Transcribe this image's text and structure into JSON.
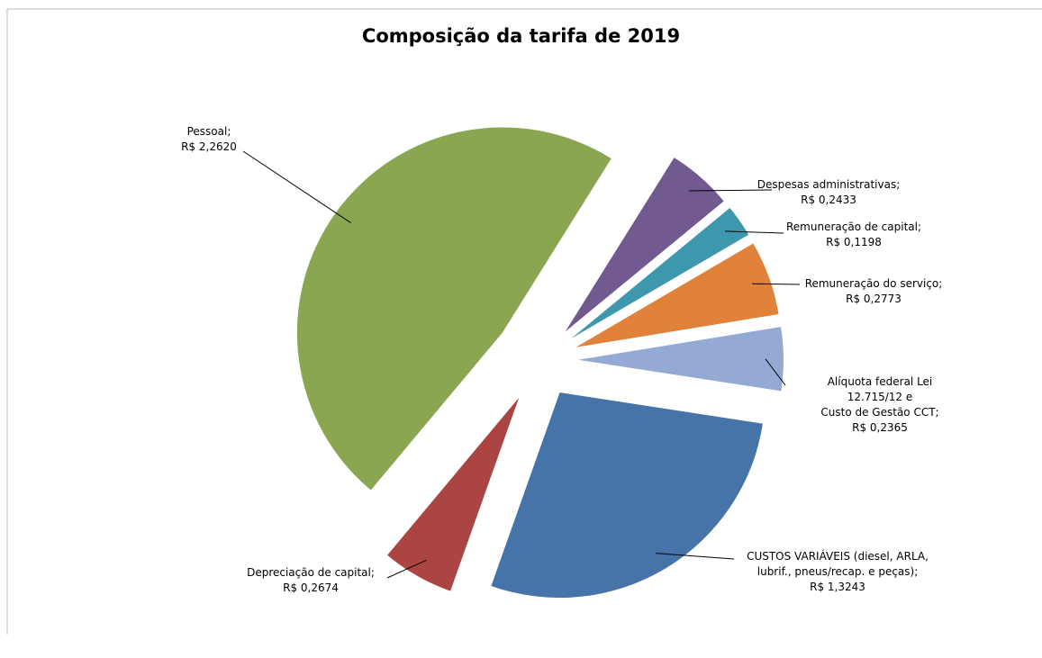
{
  "chart_data": {
    "type": "pie",
    "title": "Composição da tarifa de 2019",
    "categories": [
      "Despesas administrativas;",
      "Remuneração de capital;",
      "Remuneração do serviço;",
      "Alíquota federal Lei 12.715/12 e\nCusto de Gestão CCT;",
      "CUSTOS VARIÁVEIS (diesel, ARLA,\nlubrif., pneus/recap. e peças);",
      "Depreciação de capital;",
      "Pessoal;"
    ],
    "values": [
      0.2433,
      0.1198,
      0.2773,
      0.2365,
      1.3243,
      0.2674,
      2.262
    ],
    "value_labels": [
      "R$ 0,2433",
      "R$ 0,1198",
      "R$ 0,2773",
      "R$ 0,2365",
      "R$ 1,3243",
      "R$ 0,2674",
      "R$ 2,2620"
    ],
    "colors": [
      "#725a91",
      "#3d97ad",
      "#e0823a",
      "#94aad4",
      "#4673a8",
      "#aa4543",
      "#8aa650"
    ]
  }
}
